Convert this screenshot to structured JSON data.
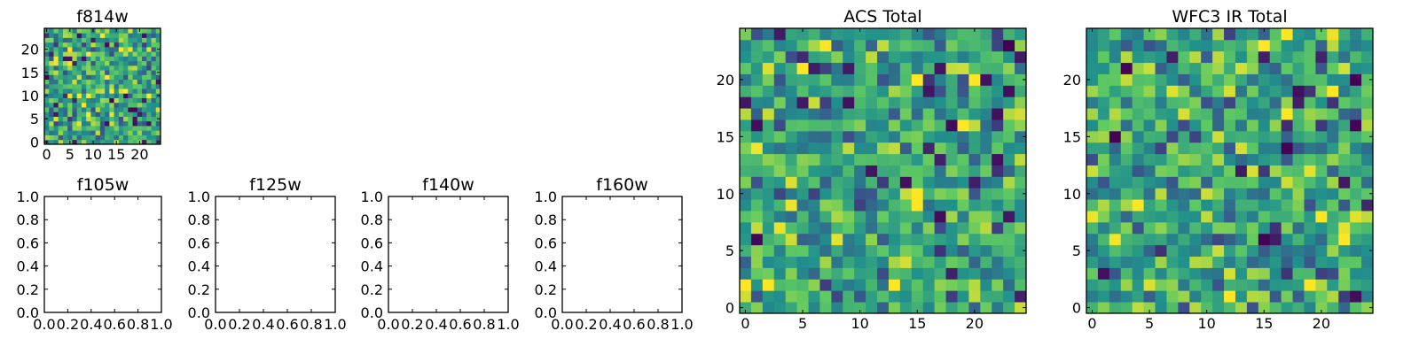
{
  "chart_data": [
    {
      "type": "heatmap",
      "title": "f814w",
      "xlabel": "",
      "ylabel": "",
      "xlim": [
        -0.5,
        24.5
      ],
      "ylim": [
        -0.5,
        24.5
      ],
      "xticks": [
        0,
        5,
        10,
        15,
        20
      ],
      "yticks": [
        0,
        5,
        10,
        15,
        20
      ],
      "grid_size": [
        25,
        25
      ],
      "colormap": "viridis",
      "note": "random noise image"
    },
    {
      "type": "empty",
      "title": "f105w",
      "xlim": [
        0,
        1
      ],
      "ylim": [
        0,
        1
      ],
      "xticks": [
        "0.0",
        "0.2",
        "0.4",
        "0.6",
        "0.8",
        "1.0"
      ],
      "yticks": [
        "0.0",
        "0.2",
        "0.4",
        "0.6",
        "0.8",
        "1.0"
      ]
    },
    {
      "type": "empty",
      "title": "f125w",
      "xlim": [
        0,
        1
      ],
      "ylim": [
        0,
        1
      ],
      "xticks": [
        "0.0",
        "0.2",
        "0.4",
        "0.6",
        "0.8",
        "1.0"
      ],
      "yticks": [
        "0.0",
        "0.2",
        "0.4",
        "0.6",
        "0.8",
        "1.0"
      ]
    },
    {
      "type": "empty",
      "title": "f140w",
      "xlim": [
        0,
        1
      ],
      "ylim": [
        0,
        1
      ],
      "xticks": [
        "0.0",
        "0.2",
        "0.4",
        "0.6",
        "0.8",
        "1.0"
      ],
      "yticks": [
        "0.0",
        "0.2",
        "0.4",
        "0.6",
        "0.8",
        "1.0"
      ]
    },
    {
      "type": "empty",
      "title": "f160w",
      "xlim": [
        0,
        1
      ],
      "ylim": [
        0,
        1
      ],
      "xticks": [
        "0.0",
        "0.2",
        "0.4",
        "0.6",
        "0.8",
        "1.0"
      ],
      "yticks": [
        "0.0",
        "0.2",
        "0.4",
        "0.6",
        "0.8",
        "1.0"
      ]
    },
    {
      "type": "heatmap",
      "title": "ACS Total",
      "xlim": [
        -0.5,
        24.5
      ],
      "ylim": [
        -0.5,
        24.5
      ],
      "xticks": [
        0,
        5,
        10,
        15,
        20
      ],
      "yticks": [
        0,
        5,
        10,
        15,
        20
      ],
      "grid_size": [
        25,
        25
      ],
      "colormap": "viridis",
      "note": "random noise image"
    },
    {
      "type": "heatmap",
      "title": "WFC3 IR Total",
      "xlim": [
        -0.5,
        24.5
      ],
      "ylim": [
        -0.5,
        24.5
      ],
      "xticks": [
        0,
        5,
        10,
        15,
        20
      ],
      "yticks": [
        0,
        5,
        10,
        15,
        20
      ],
      "grid_size": [
        25,
        25
      ],
      "colormap": "viridis",
      "note": "random noise image"
    }
  ],
  "colors": {
    "viridis": [
      "#440154",
      "#3b528b",
      "#21918c",
      "#5ec962",
      "#fde725"
    ],
    "frame": "#000000",
    "background": "#ffffff"
  }
}
